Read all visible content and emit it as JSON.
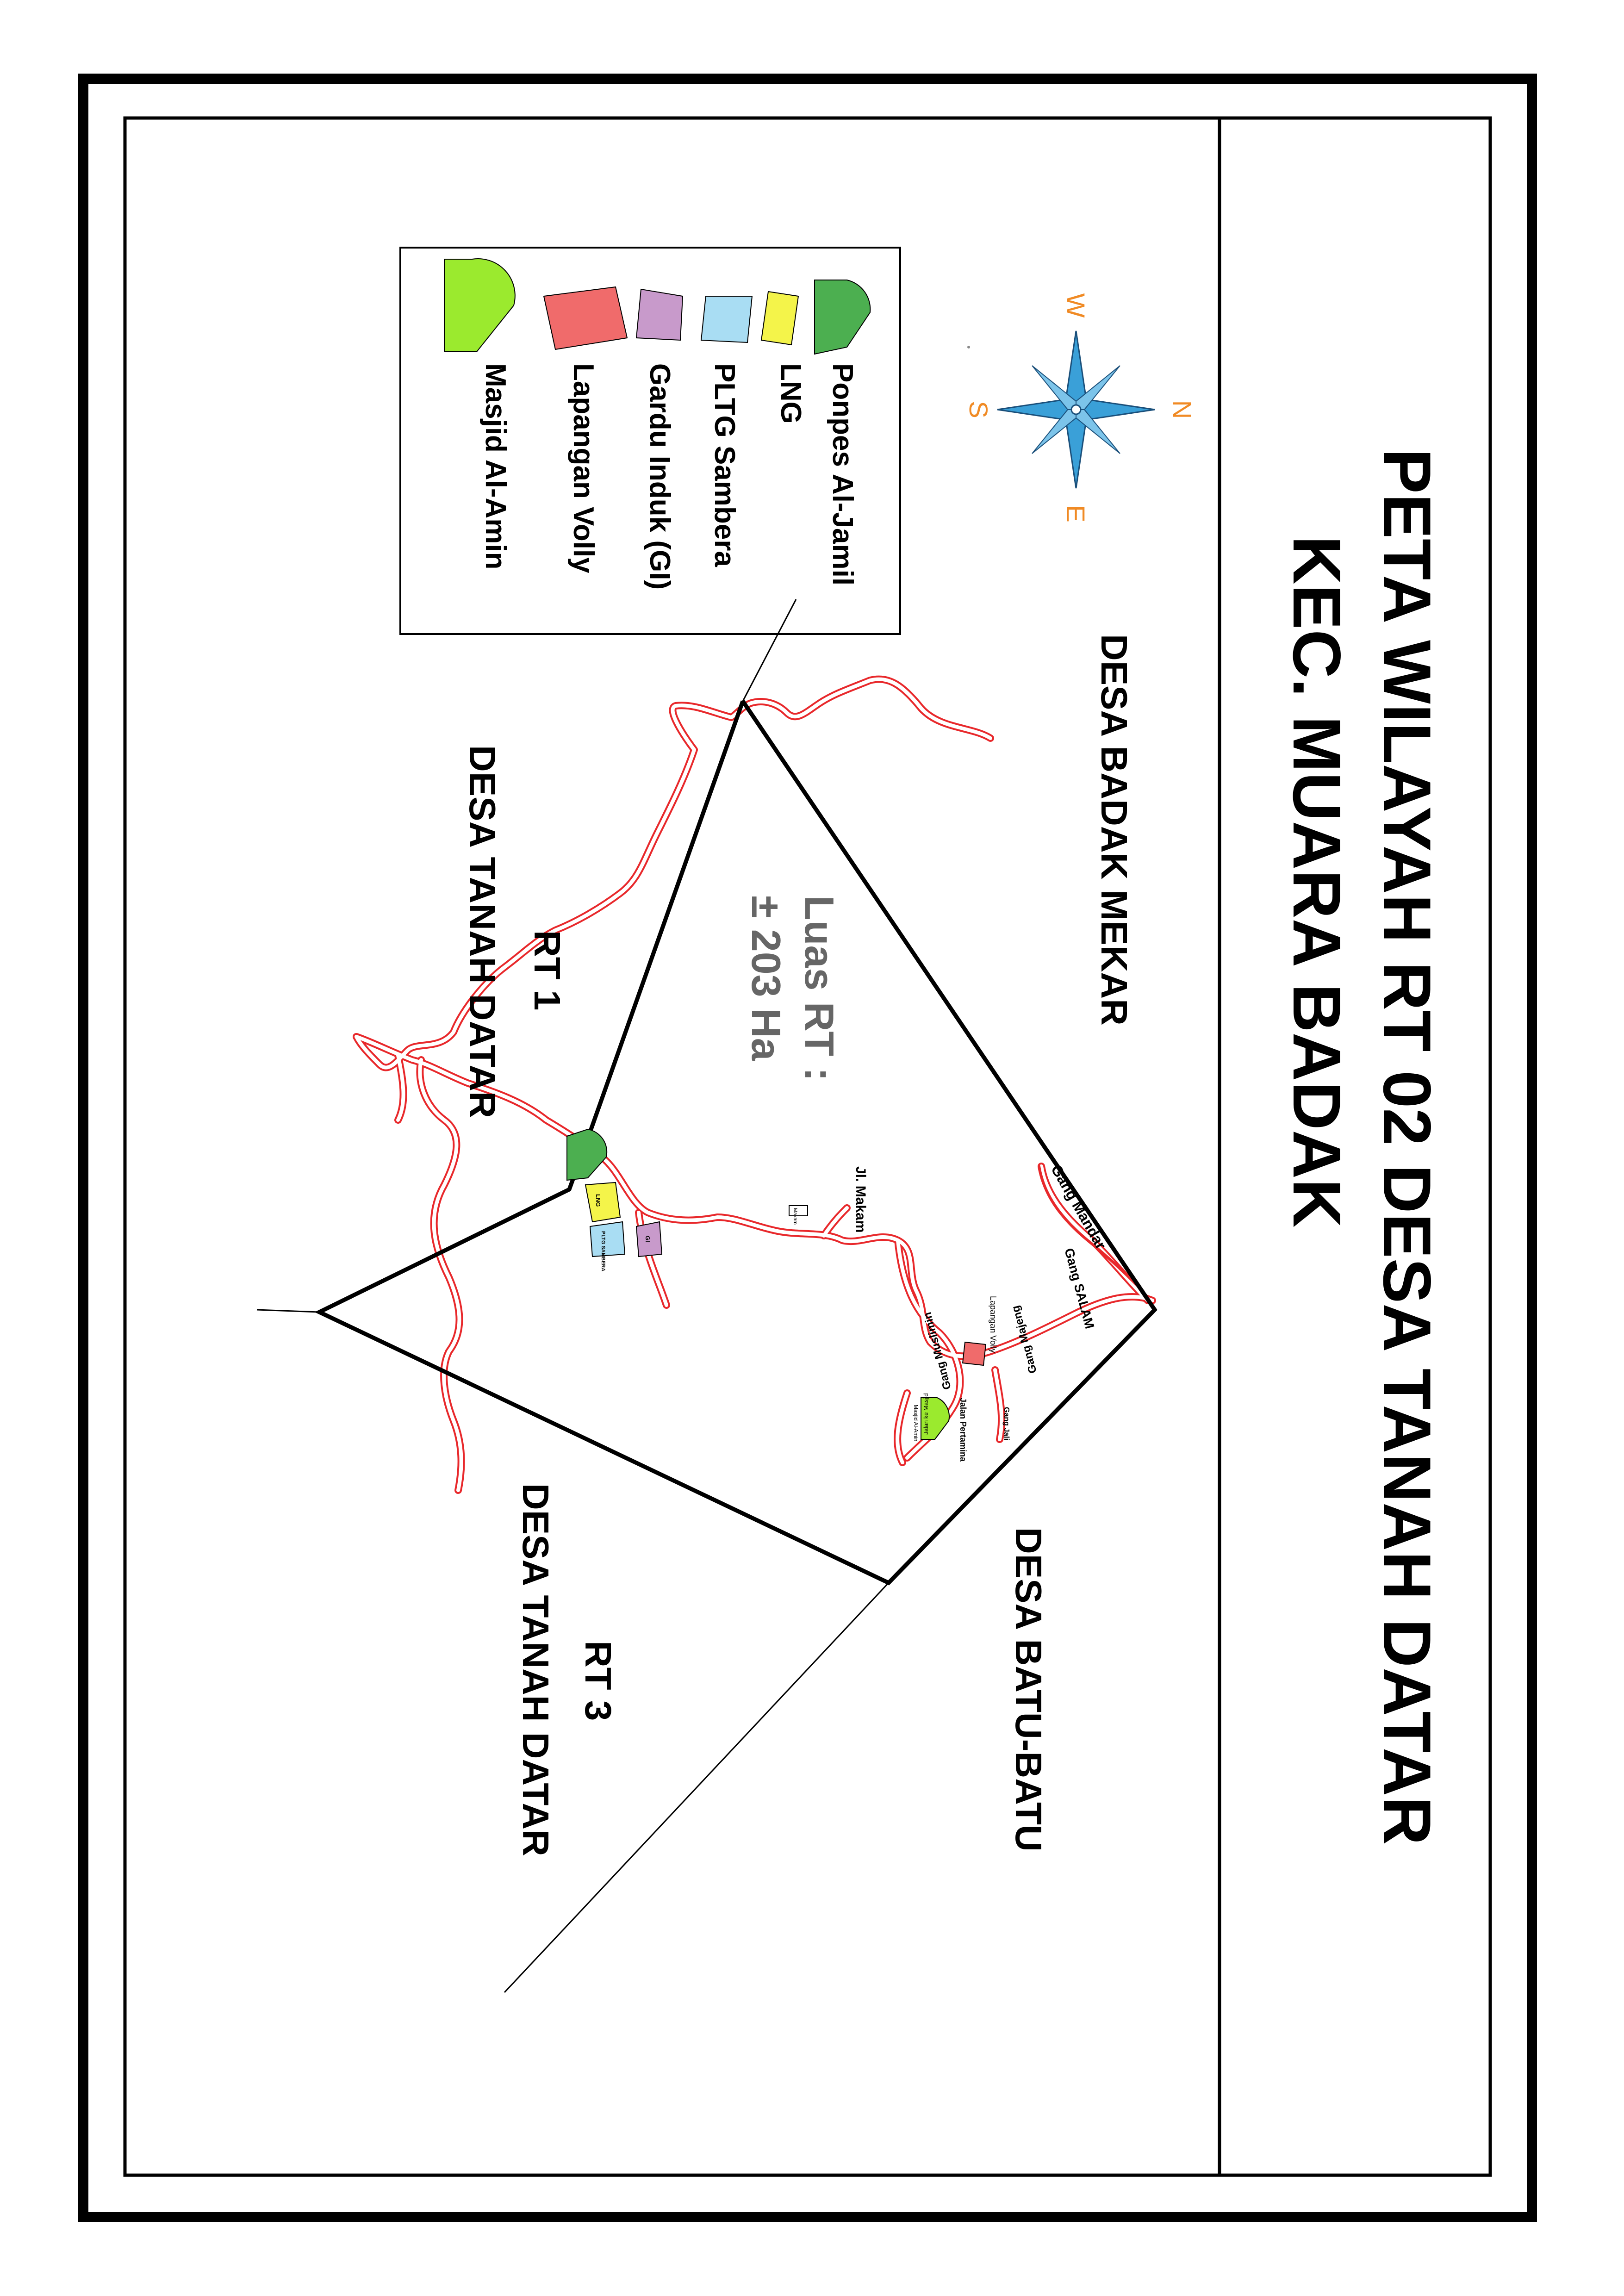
{
  "title": {
    "line1": "PETA WILAYAH RT 02 DESA TANAH DATAR",
    "line2": "KEC. MUARA BADAK"
  },
  "legend": {
    "items": [
      {
        "label": "Ponpes Al-Jamil",
        "color": "#4CAF50",
        "icon": "dome-shape"
      },
      {
        "label": "LNG",
        "color": "#F4F44A",
        "icon": "quad-shape"
      },
      {
        "label": "PLTG Sambera",
        "color": "#A9DDF3",
        "icon": "quad-shape"
      },
      {
        "label": "Gardu Induk (GI)",
        "color": "#C89ACB",
        "icon": "quad-shape"
      },
      {
        "label": "Lapangan Volly",
        "color": "#F06B6B",
        "icon": "quad-shape"
      },
      {
        "label": "Masjid Al-Amin",
        "color": "#9BEA2E",
        "icon": "dome-shape"
      }
    ]
  },
  "compass": {
    "north": "N",
    "south": "S",
    "east": "E",
    "west": "W",
    "rose_color": "#3AA0D8",
    "letter_color": "#F08A24"
  },
  "area": {
    "label": "Luas RT :",
    "value": "± 203 Ha"
  },
  "neighbors": {
    "north": "DESA BADAK MEKAR",
    "rt1": "RT 1",
    "rt1_desa": "DESA TANAH DATAR",
    "rt3": "RT 3",
    "rt3_desa": "DESA TANAH DATAR",
    "east": "DESA BATU-BATU"
  },
  "roads": {
    "jl_makam": "Jl. Makam",
    "gang_mandar": "Gang Mandar",
    "gang_salam": "Gang SALAM",
    "gang_majeng": "Gang Majeng",
    "gang_muslimin": "Gang Muslimin",
    "gang_jali": "Gang Jali",
    "jalan_pertamina": "Jalan Pertamina",
    "jalan_ke_masjid": "Jalan ke Masjid"
  },
  "map_labels": {
    "lng": "LNG",
    "pltg": "PLTG SAMBERA",
    "gi": "GI",
    "lapangan": "Lapangan Volly",
    "masjid": "Masjid Al-Amin",
    "makam": "Makam"
  },
  "colors": {
    "road": "#E8282B",
    "boundary": "#000000",
    "area_text": "#666666"
  }
}
